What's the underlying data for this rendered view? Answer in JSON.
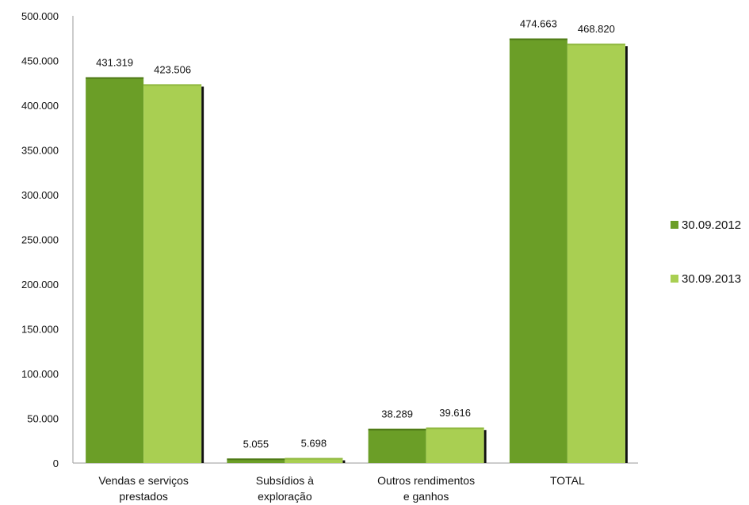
{
  "chart_data": {
    "type": "bar",
    "categories": [
      [
        "Vendas e serviços",
        "prestados"
      ],
      [
        "Subsídios à",
        "exploração"
      ],
      [
        "Outros rendimentos",
        "e ganhos"
      ],
      [
        "TOTAL"
      ]
    ],
    "series": [
      {
        "name": "30.09.2012",
        "values": [
          431319,
          5055,
          38289,
          474663
        ],
        "labels": [
          "431.319",
          "5.055",
          "38.289",
          "474.663"
        ],
        "color": "#6b9e27"
      },
      {
        "name": "30.09.2013",
        "values": [
          423506,
          5698,
          39616,
          468820
        ],
        "labels": [
          "423.506",
          "5.698",
          "39.616",
          "468.820"
        ],
        "color": "#a9cf52"
      }
    ],
    "yticks": [
      "0",
      "50.000",
      "100.000",
      "150.000",
      "200.000",
      "250.000",
      "300.000",
      "350.000",
      "400.000",
      "450.000",
      "500.000"
    ],
    "ylim": [
      0,
      500000
    ],
    "grid": false,
    "legend_position": "right"
  }
}
